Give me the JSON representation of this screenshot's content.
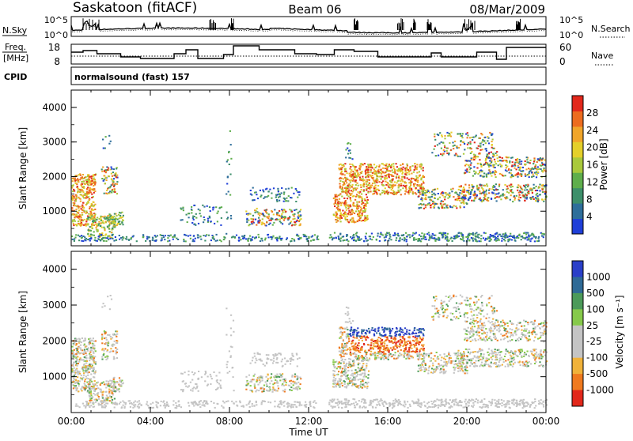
{
  "header": {
    "radar": "Saskatoon (fitACF)",
    "beam": "Beam 06",
    "date": "08/Mar/2009",
    "nsky_label": "N.Sky",
    "nsearch_label": "N.Search",
    "freq_label_1": "Freq.",
    "freq_label_2": "[MHz]",
    "nave_label": "Nave",
    "cpid_label": "CPID",
    "cpid_value": "normalsound (fast) 157",
    "noise_ticks": [
      "10^5",
      "10^0"
    ],
    "freq_ticks": [
      "18",
      "8"
    ],
    "nave_ticks": [
      "60",
      "0"
    ]
  },
  "chart_data": [
    {
      "type": "heatmap",
      "title": "",
      "ylabel": "Slant Range [km]",
      "xlabel": "",
      "yticks": [
        "1000",
        "2000",
        "3000",
        "4000"
      ],
      "ylim": [
        0,
        4500
      ],
      "xlim_hours": [
        0,
        24
      ],
      "colorbar_label": "Power [dB]",
      "colorbar_ticks": [
        "4",
        "8",
        "12",
        "16",
        "20",
        "24",
        "28"
      ],
      "colorbar_colors": [
        "#1f3fd8",
        "#2e6e9a",
        "#3d8f6a",
        "#5fae4c",
        "#a9c93c",
        "#e4cf2a",
        "#f0a52a",
        "#ec6c1f",
        "#e2281b"
      ]
    },
    {
      "type": "heatmap",
      "title": "",
      "ylabel": "Slant Range [km]",
      "xlabel": "Time UT",
      "yticks": [
        "1000",
        "2000",
        "3000",
        "4000"
      ],
      "ylim": [
        0,
        4500
      ],
      "xlim_hours": [
        0,
        24
      ],
      "xticks": [
        "00:00",
        "04:00",
        "08:00",
        "12:00",
        "16:00",
        "20:00",
        "00:00"
      ],
      "colorbar_label": "Velocity [m s⁻¹]",
      "colorbar_ticks": [
        "1000",
        "500",
        "100",
        "25",
        "-25",
        "-100",
        "-500",
        "-1000"
      ],
      "colorbar_colors": [
        "#2a3fc8",
        "#2f6a96",
        "#4c9a5a",
        "#86c94a",
        "#c4c4c4",
        "#c4c4c4",
        "#f0b23a",
        "#ef7a1f",
        "#e2281b"
      ]
    }
  ]
}
